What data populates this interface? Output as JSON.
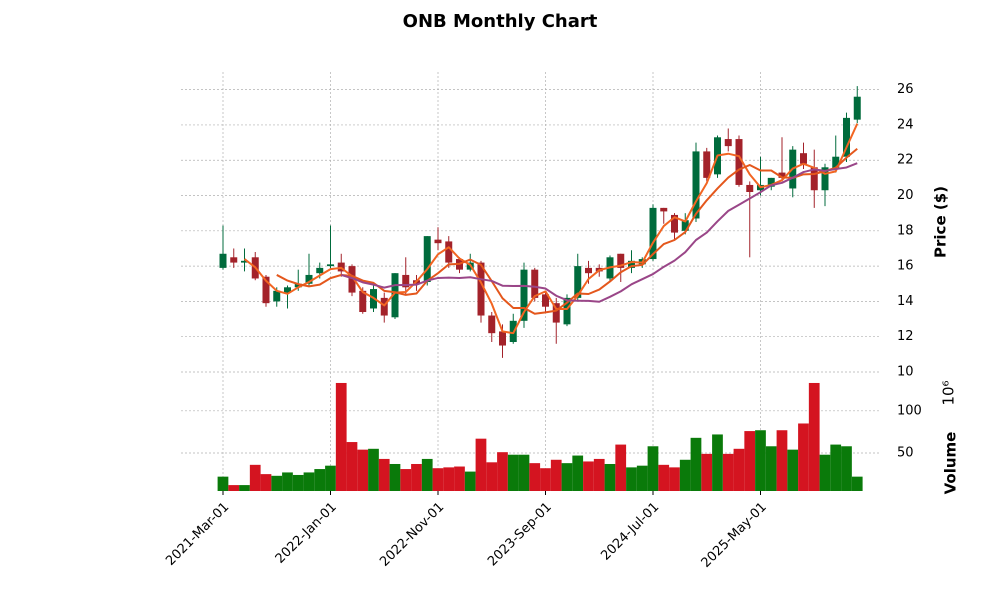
{
  "chart_data": {
    "type": "candlestick",
    "title": "ONB Monthly Chart",
    "ylabel": "Price ($)",
    "volume_label": "Volume",
    "volume_scale_label": "10⁶",
    "x": [
      "2021-Mar-01",
      "2021-Apr-01",
      "2021-May-01",
      "2021-Jun-01",
      "2021-Jul-01",
      "2021-Aug-01",
      "2021-Sep-01",
      "2021-Oct-01",
      "2021-Nov-01",
      "2021-Dec-01",
      "2022-Jan-01",
      "2022-Feb-01",
      "2022-Mar-01",
      "2022-Apr-01",
      "2022-May-01",
      "2022-Jun-01",
      "2022-Jul-01",
      "2022-Aug-01",
      "2022-Sep-01",
      "2022-Oct-01",
      "2022-Nov-01",
      "2022-Dec-01",
      "2023-Jan-01",
      "2023-Feb-01",
      "2023-Mar-01",
      "2023-Apr-01",
      "2023-May-01",
      "2023-Jun-01",
      "2023-Jul-01",
      "2023-Aug-01",
      "2023-Sep-01",
      "2023-Oct-01",
      "2023-Nov-01",
      "2023-Dec-01",
      "2024-Jan-01",
      "2024-Feb-01",
      "2024-Mar-01",
      "2024-Apr-01",
      "2024-May-01",
      "2024-Jun-01",
      "2024-Jul-01",
      "2024-Aug-01",
      "2024-Sep-01",
      "2024-Oct-01",
      "2024-Nov-01",
      "2024-Dec-01",
      "2025-Jan-01",
      "2025-Feb-01",
      "2025-Mar-01",
      "2025-Apr-01",
      "2025-May-01",
      "2025-Jun-01",
      "2025-Jul-01",
      "2025-Aug-01",
      "2025-Sep-01",
      "2025-Oct-01",
      "2025-Nov-01",
      "2025-Dec-01",
      "2026-Jan-01",
      "2026-Feb-01"
    ],
    "xticks": [
      0,
      10,
      20,
      30,
      40,
      50
    ],
    "open": [
      15.9,
      16.5,
      16.2,
      16.5,
      15.4,
      14.0,
      14.5,
      14.8,
      15.0,
      15.6,
      16.0,
      16.2,
      16.0,
      14.6,
      13.6,
      14.2,
      13.1,
      15.5,
      15.2,
      15.1,
      17.5,
      17.4,
      16.4,
      15.8,
      16.2,
      13.2,
      12.3,
      11.7,
      12.9,
      15.8,
      14.4,
      13.9,
      12.7,
      14.2,
      15.9,
      15.9,
      15.3,
      16.7,
      15.9,
      16.1,
      16.4,
      19.3,
      18.9,
      18.0,
      18.7,
      22.5,
      21.2,
      23.2,
      23.2,
      20.6,
      20.3,
      20.5,
      21.3,
      20.4,
      22.4,
      21.6,
      20.3,
      21.5,
      22.2,
      24.3
    ],
    "high": [
      18.3,
      17.0,
      17.0,
      16.8,
      15.5,
      14.8,
      14.9,
      15.8,
      16.7,
      16.2,
      18.3,
      16.7,
      16.1,
      14.8,
      14.9,
      14.5,
      15.6,
      16.5,
      15.5,
      17.7,
      18.2,
      17.7,
      16.5,
      16.7,
      16.3,
      13.4,
      12.7,
      13.3,
      16.2,
      15.9,
      14.6,
      14.2,
      14.4,
      16.7,
      16.3,
      16.1,
      16.6,
      16.7,
      16.9,
      16.5,
      19.5,
      19.3,
      19.0,
      19.0,
      23.0,
      22.7,
      23.4,
      23.8,
      23.4,
      20.8,
      22.2,
      21.0,
      23.3,
      22.8,
      23.0,
      22.6,
      21.8,
      23.4,
      24.7,
      26.2
    ],
    "low": [
      15.8,
      15.9,
      15.7,
      15.2,
      13.7,
      13.7,
      13.6,
      14.6,
      14.9,
      15.3,
      15.8,
      15.4,
      14.3,
      13.3,
      13.4,
      12.8,
      13.0,
      14.4,
      14.6,
      14.9,
      16.9,
      15.9,
      15.6,
      15.7,
      12.8,
      11.7,
      10.8,
      11.6,
      12.5,
      14.0,
      13.4,
      11.6,
      12.6,
      14.0,
      15.0,
      15.4,
      15.1,
      15.1,
      15.6,
      15.9,
      16.3,
      18.4,
      17.5,
      17.8,
      18.5,
      20.8,
      21.0,
      22.5,
      20.5,
      16.5,
      20.0,
      20.3,
      20.8,
      19.9,
      21.5,
      19.3,
      19.4,
      21.3,
      21.9,
      24.1
    ],
    "close": [
      16.7,
      16.2,
      16.3,
      15.3,
      13.9,
      14.6,
      14.8,
      15.0,
      15.5,
      15.9,
      16.1,
      15.7,
      14.5,
      13.4,
      14.7,
      13.2,
      15.6,
      14.8,
      15.0,
      17.7,
      17.3,
      16.2,
      15.8,
      16.2,
      13.2,
      12.2,
      11.5,
      12.9,
      15.8,
      14.2,
      13.7,
      12.8,
      14.2,
      16.0,
      15.6,
      15.7,
      16.5,
      15.9,
      16.3,
      16.4,
      19.3,
      19.1,
      17.9,
      18.6,
      22.5,
      21.0,
      23.3,
      22.8,
      20.6,
      20.2,
      20.6,
      21.0,
      21.0,
      22.6,
      21.8,
      20.3,
      21.6,
      22.2,
      24.4,
      25.6
    ],
    "volume": [
      22,
      12,
      12,
      36,
      25,
      23,
      27,
      24,
      27,
      31,
      35,
      133,
      63,
      54,
      55,
      43,
      37,
      31,
      37,
      43,
      32,
      33,
      34,
      28,
      67,
      39,
      51,
      48,
      48,
      38,
      32,
      42,
      38,
      47,
      40,
      43,
      37,
      60,
      33,
      35,
      58,
      36,
      33,
      42,
      68,
      49,
      72,
      49,
      55,
      76,
      77,
      58,
      77,
      54,
      85,
      133,
      48,
      60,
      58,
      22
    ],
    "up_color": "#006b3c",
    "down_color": "#a3222a",
    "volume_up_color": "#0a7a0a",
    "volume_down_color": "#d41420",
    "moving_averages": [
      {
        "color": "#f26522",
        "values": [
          null,
          null,
          16.4,
          15.93,
          15.17,
          14.6,
          14.43,
          14.8,
          15.1,
          15.47,
          15.83,
          15.9,
          15.43,
          14.53,
          14.2,
          13.77,
          14.5,
          14.53,
          15.13,
          15.83,
          16.67,
          17.07,
          16.43,
          16.07,
          15.07,
          13.87,
          12.3,
          12.2,
          13.4,
          14.3,
          14.57,
          13.57,
          13.57,
          14.33,
          15.27,
          15.77,
          15.93,
          16.03,
          16.23,
          16.2,
          17.33,
          18.27,
          18.77,
          18.53,
          19.67,
          20.7,
          22.27,
          22.37,
          22.23,
          21.2,
          20.47,
          20.6,
          20.87,
          21.53,
          21.8,
          21.57,
          21.23,
          21.37,
          22.73,
          24.07
        ]
      },
      {
        "color": "#e4571c",
        "values": [
          null,
          null,
          null,
          null,
          null,
          15.5,
          15.18,
          14.98,
          14.85,
          14.95,
          15.32,
          15.5,
          15.45,
          15.18,
          15.05,
          14.6,
          14.52,
          14.37,
          14.45,
          15.17,
          15.6,
          16.1,
          16.13,
          16.37,
          16.07,
          15.15,
          14.18,
          13.63,
          13.63,
          13.3,
          13.38,
          13.48,
          13.93,
          14.45,
          14.42,
          14.67,
          15.13,
          15.65,
          16.0,
          16.07,
          16.68,
          17.25,
          17.48,
          17.93,
          18.97,
          19.73,
          20.4,
          21.02,
          21.47,
          21.73,
          21.42,
          21.42,
          21.03,
          21.0,
          21.2,
          21.22,
          21.38,
          21.58,
          22.15,
          22.65
        ]
      },
      {
        "color": "#9a4688",
        "values": [
          null,
          null,
          null,
          null,
          null,
          null,
          null,
          null,
          null,
          null,
          null,
          15.5,
          15.32,
          15.08,
          14.95,
          14.78,
          14.92,
          14.93,
          14.95,
          15.18,
          15.33,
          15.35,
          15.33,
          15.37,
          15.26,
          15.16,
          14.89,
          14.87,
          14.88,
          14.83,
          14.73,
          14.32,
          14.06,
          14.04,
          14.03,
          13.98,
          14.26,
          14.57,
          14.97,
          15.26,
          15.55,
          15.96,
          16.31,
          16.79,
          17.48,
          17.9,
          18.54,
          19.13,
          19.48,
          19.83,
          20.19,
          20.58,
          20.72,
          21.01,
          21.33,
          21.48,
          21.4,
          21.5,
          21.59,
          21.83
        ]
      }
    ],
    "ylim": [
      10,
      27
    ],
    "yticks": [
      10,
      12,
      14,
      16,
      18,
      20,
      22,
      24,
      26
    ],
    "volume_ylim": [
      5,
      146
    ],
    "volume_yticks": [
      50,
      100
    ],
    "grid": true
  }
}
